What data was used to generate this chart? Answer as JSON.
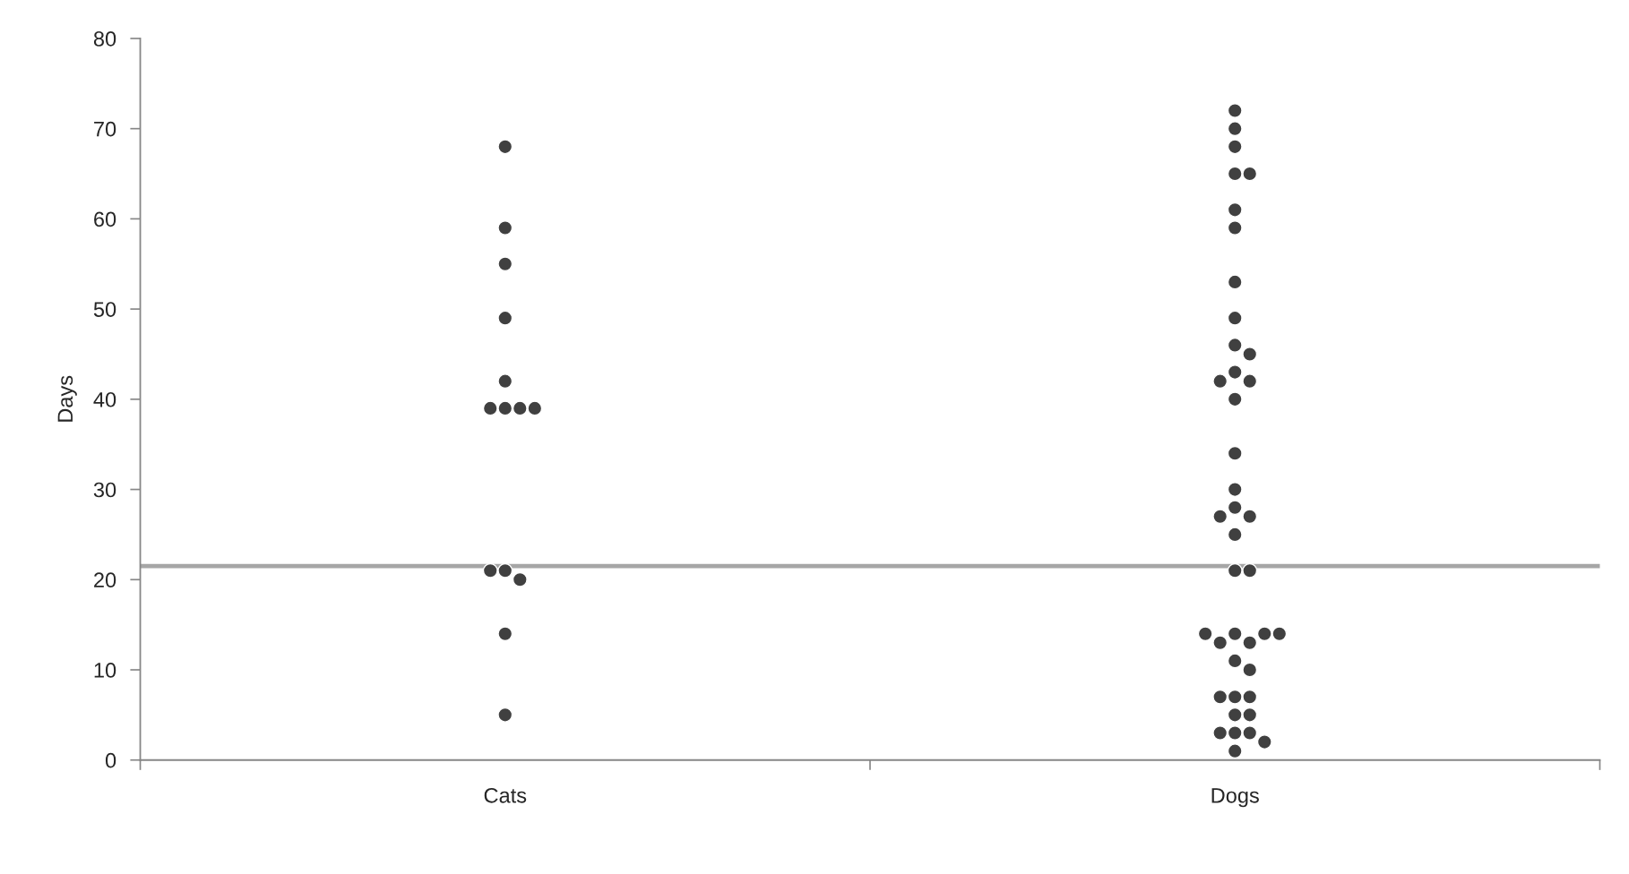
{
  "chart_data": {
    "type": "scatter",
    "ylabel": "Days",
    "categories": [
      "Cats",
      "Dogs"
    ],
    "ylim": [
      0,
      80
    ],
    "yticks": [
      0,
      10,
      20,
      30,
      40,
      50,
      60,
      70,
      80
    ],
    "grid": false,
    "marker": "circle",
    "ref_lines": [
      {
        "axis": "y",
        "value": 21.5,
        "color": "#a6a6a6"
      }
    ],
    "series": [
      {
        "color": "#404040",
        "x": [
          "Cats",
          "Cats",
          "Cats",
          "Cats",
          "Cats",
          "Cats",
          "Cats",
          "Cats",
          "Cats",
          "Cats",
          "Cats",
          "Cats",
          "Cats",
          "Cats"
        ],
        "values": [
          68,
          59,
          55,
          49,
          42,
          39,
          39,
          39,
          39,
          21,
          20,
          21,
          14,
          5
        ]
      },
      {
        "color": "#404040",
        "x": [
          "Dogs",
          "Dogs",
          "Dogs",
          "Dogs",
          "Dogs",
          "Dogs",
          "Dogs",
          "Dogs",
          "Dogs",
          "Dogs",
          "Dogs",
          "Dogs",
          "Dogs",
          "Dogs",
          "Dogs",
          "Dogs",
          "Dogs",
          "Dogs",
          "Dogs",
          "Dogs",
          "Dogs",
          "Dogs",
          "Dogs",
          "Dogs",
          "Dogs",
          "Dogs",
          "Dogs",
          "Dogs",
          "Dogs",
          "Dogs",
          "Dogs",
          "Dogs",
          "Dogs",
          "Dogs",
          "Dogs",
          "Dogs",
          "Dogs",
          "Dogs",
          "Dogs",
          "Dogs",
          "Dogs"
        ],
        "values": [
          72,
          70,
          68,
          65,
          65,
          61,
          59,
          53,
          49,
          46,
          45,
          43,
          42,
          42,
          40,
          34,
          30,
          28,
          27,
          27,
          25,
          21,
          21,
          14,
          13,
          13,
          14,
          14,
          14,
          11,
          10,
          7,
          7,
          7,
          5,
          5,
          3,
          3,
          3,
          2,
          1
        ]
      }
    ]
  }
}
